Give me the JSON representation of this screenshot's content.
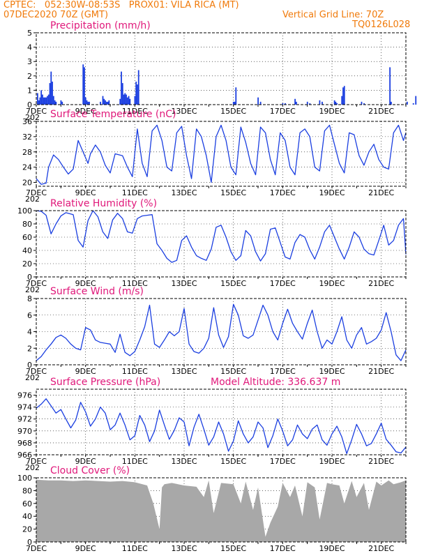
{
  "header": {
    "line1_left": "CPTEC:   052:30W-08:53S   PROX01: VILA RICA (MT)",
    "line2_left": "07DEC2020 70Z (GMT)",
    "line2_right": "Vertical Grid Line: 70Z",
    "line3_right": "TQ0126L028"
  },
  "colors": {
    "header": "#f07a0a",
    "title": "#e0187a",
    "line": "#1a3ee0",
    "cloud": "#a8a8a8",
    "grid": "#000000"
  },
  "chart_data": [
    {
      "id": "precip",
      "type": "bar",
      "title": "Precipitation (mm/h)",
      "ylim": [
        0,
        5
      ],
      "yticks": [
        0,
        1,
        2,
        3,
        4,
        5
      ],
      "xticks": [
        "7DEC",
        "9DEC",
        "11DEC",
        "13DEC",
        "15DEC",
        "17DEC",
        "19DEC",
        "21DEC"
      ],
      "x_label_cut": "202",
      "x_days": [
        0.05,
        0.1,
        0.15,
        0.2,
        0.25,
        0.3,
        0.35,
        0.4,
        0.45,
        0.5,
        0.55,
        0.6,
        0.65,
        0.7,
        0.75,
        0.8,
        1.0,
        1.05,
        1.9,
        1.95,
        2.0,
        2.05,
        2.1,
        2.15,
        2.6,
        2.7,
        2.75,
        2.8,
        2.85,
        2.9,
        2.95,
        3.4,
        3.45,
        3.5,
        3.55,
        3.6,
        3.65,
        3.7,
        3.75,
        3.8,
        4.0,
        4.05,
        4.1,
        4.15,
        8.0,
        8.05,
        8.1,
        9.0,
        9.1,
        10.0,
        10.1,
        10.5,
        10.55,
        11.0,
        11.1,
        11.5,
        11.6,
        12.1,
        12.15,
        12.2,
        12.4,
        12.45,
        12.5,
        13.2,
        13.3,
        14.35,
        14.4,
        15.05,
        15.3,
        15.4
      ],
      "values": [
        0.8,
        0.3,
        0.5,
        1.0,
        0.7,
        0.5,
        0.5,
        0.5,
        0.6,
        0.7,
        1.5,
        2.3,
        1.6,
        0.6,
        0.3,
        0.2,
        0.3,
        0.2,
        2.8,
        2.6,
        0.5,
        0.3,
        0.2,
        0.2,
        0.2,
        0.6,
        0.4,
        0.3,
        0.2,
        0.2,
        0.3,
        0.4,
        2.3,
        1.5,
        0.7,
        0.8,
        0.7,
        0.5,
        0.6,
        0.4,
        0.6,
        1.6,
        1.4,
        2.4,
        0.2,
        0.2,
        1.2,
        0.5,
        0.2,
        0.1,
        0.1,
        0.4,
        0.2,
        0.2,
        0.1,
        0.3,
        0.2,
        0.3,
        0.2,
        0.1,
        0.6,
        1.2,
        1.3,
        0.2,
        0.1,
        2.6,
        0.2,
        0.2,
        0.1,
        0.6
      ]
    },
    {
      "id": "temp",
      "type": "line",
      "title": "Surface Temperature (nC)",
      "ylim": [
        19,
        36
      ],
      "yticks": [
        20,
        24,
        28,
        32,
        36
      ],
      "xticks": [
        "7DEC",
        "9DEC",
        "11DEC",
        "13DEC",
        "15DEC",
        "17DEC",
        "19DEC",
        "21DEC"
      ],
      "x_label_cut": "202",
      "x_days": [
        0.0,
        0.2,
        0.4,
        0.5,
        0.7,
        0.9,
        1.1,
        1.3,
        1.5,
        1.7,
        1.9,
        2.1,
        2.2,
        2.4,
        2.6,
        2.8,
        3.0,
        3.2,
        3.5,
        3.7,
        3.9,
        4.1,
        4.3,
        4.5,
        4.7,
        4.9,
        5.1,
        5.3,
        5.5,
        5.7,
        5.9,
        6.1,
        6.3,
        6.5,
        6.7,
        6.9,
        7.1,
        7.3,
        7.5,
        7.7,
        7.9,
        8.1,
        8.3,
        8.5,
        8.7,
        8.9,
        9.1,
        9.3,
        9.5,
        9.7,
        9.9,
        10.1,
        10.3,
        10.5,
        10.7,
        10.9,
        11.1,
        11.3,
        11.5,
        11.7,
        11.9,
        12.1,
        12.3,
        12.5,
        12.7,
        12.9,
        13.1,
        13.3,
        13.5,
        13.7,
        13.9,
        14.1,
        14.3,
        14.5,
        14.7,
        14.9,
        15.0
      ],
      "values": [
        21,
        19.5,
        19.8,
        24,
        27.2,
        26,
        24,
        22.2,
        23.5,
        31,
        28,
        25,
        27.5,
        29.8,
        28,
        24.5,
        22.5,
        27.5,
        27,
        24,
        21.5,
        34,
        25,
        21.5,
        33.5,
        35,
        31,
        24,
        23,
        33,
        34.7,
        27,
        21,
        34,
        32,
        27,
        20,
        32,
        35,
        31,
        24,
        22,
        34.5,
        30.5,
        25,
        22,
        34.5,
        33,
        26,
        22,
        33,
        31,
        24,
        22,
        33,
        34,
        32,
        24,
        23,
        33.5,
        35,
        30,
        25,
        22.5,
        33,
        32.5,
        27,
        24.5,
        28,
        30,
        26,
        24,
        23.5,
        33,
        35,
        31,
        33
      ]
    },
    {
      "id": "rh",
      "type": "line",
      "title": "Relative Humidity (%)",
      "ylim": [
        0,
        100
      ],
      "yticks": [
        0,
        20,
        40,
        60,
        80,
        100
      ],
      "xticks": [
        "7DEC",
        "9DEC",
        "11DEC",
        "13DEC",
        "15DEC",
        "17DEC",
        "19DEC",
        "21DEC"
      ],
      "x_label_cut": "202",
      "x_days": [
        0.0,
        0.2,
        0.4,
        0.6,
        0.8,
        1.0,
        1.2,
        1.5,
        1.7,
        1.9,
        2.1,
        2.3,
        2.5,
        2.7,
        2.9,
        3.1,
        3.3,
        3.5,
        3.7,
        3.9,
        4.1,
        4.3,
        4.5,
        4.7,
        4.9,
        5.1,
        5.3,
        5.5,
        5.7,
        5.9,
        6.1,
        6.3,
        6.5,
        6.7,
        6.9,
        7.1,
        7.3,
        7.5,
        7.7,
        7.9,
        8.1,
        8.3,
        8.5,
        8.7,
        8.9,
        9.1,
        9.3,
        9.5,
        9.7,
        9.9,
        10.1,
        10.3,
        10.5,
        10.7,
        10.9,
        11.1,
        11.3,
        11.5,
        11.7,
        11.9,
        12.1,
        12.3,
        12.5,
        12.7,
        12.9,
        13.1,
        13.3,
        13.5,
        13.7,
        13.9,
        14.1,
        14.3,
        14.5,
        14.7,
        14.9,
        15.0
      ],
      "values": [
        100,
        99,
        93,
        65,
        80,
        92,
        97,
        94,
        55,
        45,
        85,
        100,
        91,
        68,
        58,
        86,
        96,
        88,
        68,
        66,
        88,
        92,
        93,
        94,
        50,
        40,
        28,
        22,
        25,
        55,
        62,
        45,
        32,
        28,
        25,
        42,
        75,
        78,
        60,
        38,
        25,
        32,
        70,
        62,
        38,
        24,
        35,
        72,
        74,
        52,
        30,
        27,
        52,
        64,
        60,
        41,
        27,
        45,
        68,
        78,
        60,
        42,
        27,
        45,
        68,
        60,
        42,
        35,
        33,
        55,
        78,
        48,
        55,
        78,
        88,
        34
      ]
    },
    {
      "id": "wind",
      "type": "line",
      "title": "Surface Wind (m/s)",
      "ylim": [
        0,
        8
      ],
      "yticks": [
        0,
        2,
        4,
        6,
        8
      ],
      "xticks": [
        "7DEC",
        "9DEC",
        "11DEC",
        "13DEC",
        "15DEC",
        "17DEC",
        "19DEC",
        "21DEC"
      ],
      "x_label_cut": "202",
      "x_days": [
        0.0,
        0.2,
        0.4,
        0.6,
        0.8,
        1.0,
        1.2,
        1.4,
        1.6,
        1.8,
        2.0,
        2.2,
        2.4,
        2.6,
        2.8,
        3.0,
        3.2,
        3.4,
        3.6,
        3.8,
        4.0,
        4.2,
        4.4,
        4.6,
        4.8,
        5.0,
        5.2,
        5.4,
        5.6,
        5.8,
        6.0,
        6.2,
        6.4,
        6.6,
        6.8,
        7.0,
        7.2,
        7.4,
        7.6,
        7.8,
        8.0,
        8.2,
        8.4,
        8.6,
        8.8,
        9.0,
        9.2,
        9.4,
        9.6,
        9.8,
        10.0,
        10.2,
        10.4,
        10.6,
        10.8,
        11.0,
        11.2,
        11.4,
        11.6,
        11.8,
        12.0,
        12.2,
        12.4,
        12.6,
        12.8,
        13.0,
        13.2,
        13.4,
        13.6,
        13.8,
        14.0,
        14.2,
        14.4,
        14.6,
        14.8,
        15.0
      ],
      "values": [
        0.5,
        1,
        1.8,
        2.5,
        3.3,
        3.6,
        3.2,
        2.5,
        2,
        1.8,
        4.5,
        4.2,
        3,
        2.7,
        2.6,
        2.5,
        1.5,
        3.7,
        1.5,
        1.1,
        1.6,
        3,
        4.6,
        7.2,
        2.5,
        2.1,
        3,
        4,
        3.5,
        4,
        6.8,
        2.5,
        1.6,
        1.4,
        2,
        3.2,
        6.9,
        3.6,
        2.1,
        3.4,
        7.3,
        6,
        3.5,
        3.2,
        3.6,
        5.4,
        7.2,
        6,
        4,
        3,
        5,
        6.7,
        5,
        4,
        3.1,
        5,
        6.6,
        4,
        2,
        3,
        2.5,
        4,
        5.8,
        3,
        2,
        3.6,
        4.5,
        2.5,
        2.8,
        3.2,
        4.2,
        6.3,
        4,
        1.2,
        0.5,
        1.8
      ]
    },
    {
      "id": "pres",
      "type": "line",
      "title": "Surface Pressure (hPa)",
      "subtitle": "Model Altitude: 336.637 m",
      "ylim": [
        966,
        977
      ],
      "yticks": [
        966,
        968,
        970,
        972,
        974,
        976
      ],
      "xticks": [
        "7DEC",
        "9DEC",
        "11DEC",
        "13DEC",
        "15DEC",
        "17DEC",
        "19DEC",
        "21DEC"
      ],
      "x_label_cut": "202",
      "x_days": [
        0.0,
        0.2,
        0.4,
        0.6,
        0.8,
        1.0,
        1.2,
        1.4,
        1.6,
        1.8,
        2.0,
        2.2,
        2.4,
        2.6,
        2.8,
        3.0,
        3.2,
        3.4,
        3.6,
        3.8,
        4.0,
        4.2,
        4.4,
        4.6,
        4.8,
        5.0,
        5.2,
        5.4,
        5.6,
        5.8,
        6.0,
        6.2,
        6.4,
        6.6,
        6.8,
        7.0,
        7.2,
        7.4,
        7.6,
        7.8,
        8.0,
        8.2,
        8.4,
        8.6,
        8.8,
        9.0,
        9.2,
        9.4,
        9.6,
        9.8,
        10.0,
        10.2,
        10.4,
        10.6,
        10.8,
        11.0,
        11.2,
        11.4,
        11.6,
        11.8,
        12.0,
        12.2,
        12.4,
        12.6,
        12.8,
        13.0,
        13.2,
        13.4,
        13.6,
        13.8,
        14.0,
        14.2,
        14.4,
        14.6,
        14.8,
        15.0
      ],
      "values": [
        973.8,
        974.5,
        975.4,
        974.2,
        973,
        973.6,
        972,
        970.5,
        971.8,
        974.8,
        973.2,
        970.8,
        972,
        974,
        973,
        970.2,
        971,
        973,
        971,
        968.5,
        969.2,
        972.6,
        971,
        968.2,
        970,
        973.5,
        971,
        968.6,
        970.1,
        972.2,
        971.5,
        967.5,
        970.6,
        972.8,
        970.3,
        967.6,
        969,
        971.5,
        969.5,
        966.6,
        968.3,
        971.7,
        969.5,
        968,
        969,
        971.5,
        970.5,
        967.2,
        969.2,
        972,
        970,
        967.5,
        968.5,
        971,
        969.5,
        968.7,
        970.3,
        971,
        968.5,
        967.6,
        969.5,
        970.8,
        969,
        966.2,
        968.5,
        971.1,
        969.5,
        967.5,
        967.9,
        969.5,
        971.3,
        968.6,
        967.6,
        966.5,
        966.3,
        967.3
      ]
    },
    {
      "id": "cloud",
      "type": "area",
      "title": "Cloud Cover (%)",
      "ylim": [
        0,
        100
      ],
      "yticks": [
        0,
        20,
        40,
        60,
        80,
        100
      ],
      "xticks": [
        "7DEC",
        "9DEC",
        "11DEC",
        "13DEC",
        "15DEC",
        "17DEC",
        "19DEC",
        "21DEC"
      ],
      "x_days": [
        0.0,
        0.5,
        1.0,
        1.5,
        2.0,
        2.5,
        3.0,
        3.5,
        4.0,
        4.5,
        4.75,
        5.0,
        5.1,
        5.2,
        5.5,
        6.0,
        6.5,
        6.8,
        7.0,
        7.2,
        7.5,
        8.0,
        8.3,
        8.5,
        8.8,
        9.0,
        9.3,
        9.5,
        9.8,
        10.0,
        10.3,
        10.5,
        10.8,
        11.0,
        11.3,
        11.5,
        11.8,
        12.0,
        12.3,
        12.5,
        12.8,
        13.0,
        13.3,
        13.5,
        13.8,
        14.0,
        14.3,
        14.5,
        14.8,
        15.0
      ],
      "values": [
        97,
        96,
        96,
        95,
        96,
        95,
        94,
        95,
        93,
        88,
        60,
        20,
        85,
        90,
        92,
        88,
        86,
        70,
        96,
        45,
        92,
        90,
        60,
        94,
        50,
        85,
        8,
        30,
        55,
        92,
        70,
        88,
        40,
        93,
        85,
        35,
        92,
        90,
        88,
        60,
        95,
        70,
        92,
        50,
        94,
        88,
        96,
        90,
        93,
        96
      ]
    }
  ]
}
